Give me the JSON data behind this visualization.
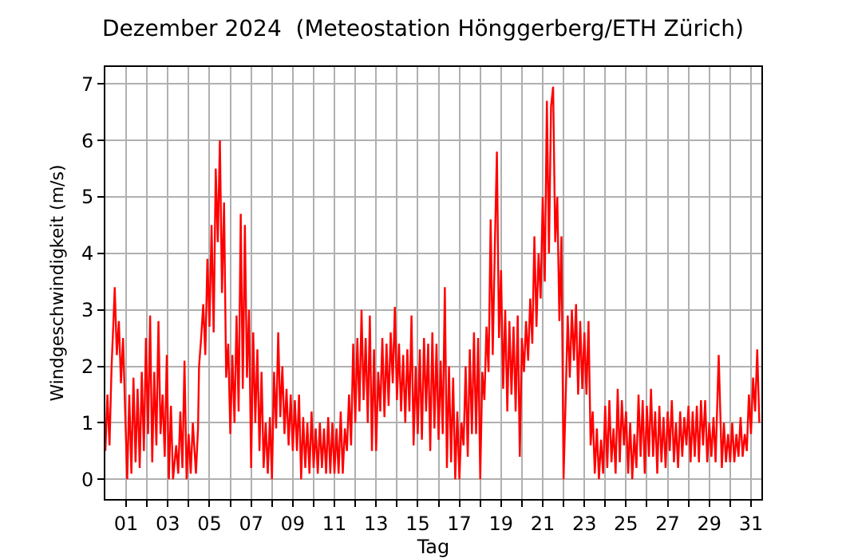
{
  "chart_data": {
    "type": "line",
    "title": "Dezember 2024  (Meteostation Hönggerberg/ETH Zürich)",
    "xlabel": "Tag",
    "ylabel": "Windgeschwindigkeit (m/s)",
    "xlim": [
      0,
      31.5
    ],
    "ylim": [
      -0.35,
      7.3
    ],
    "yticks": [
      0,
      1,
      2,
      3,
      4,
      5,
      6,
      7
    ],
    "xticks": [
      {
        "value": 1,
        "label": "01"
      },
      {
        "value": 2,
        "label": null
      },
      {
        "value": 3,
        "label": "03"
      },
      {
        "value": 4,
        "label": null
      },
      {
        "value": 5,
        "label": "05"
      },
      {
        "value": 6,
        "label": null
      },
      {
        "value": 7,
        "label": "07"
      },
      {
        "value": 8,
        "label": null
      },
      {
        "value": 9,
        "label": "09"
      },
      {
        "value": 10,
        "label": null
      },
      {
        "value": 11,
        "label": "11"
      },
      {
        "value": 12,
        "label": null
      },
      {
        "value": 13,
        "label": "13"
      },
      {
        "value": 14,
        "label": null
      },
      {
        "value": 15,
        "label": "15"
      },
      {
        "value": 16,
        "label": null
      },
      {
        "value": 17,
        "label": "17"
      },
      {
        "value": 18,
        "label": null
      },
      {
        "value": 19,
        "label": "19"
      },
      {
        "value": 20,
        "label": null
      },
      {
        "value": 21,
        "label": "21"
      },
      {
        "value": 22,
        "label": null
      },
      {
        "value": 23,
        "label": "23"
      },
      {
        "value": 24,
        "label": null
      },
      {
        "value": 25,
        "label": "25"
      },
      {
        "value": 26,
        "label": null
      },
      {
        "value": 27,
        "label": "27"
      },
      {
        "value": 28,
        "label": null
      },
      {
        "value": 29,
        "label": "29"
      },
      {
        "value": 30,
        "label": null
      },
      {
        "value": 31,
        "label": "31"
      }
    ],
    "grid": true,
    "marker": "none",
    "line_style": "solid",
    "series": [
      {
        "color": "#ff0000",
        "x": [
          0,
          0.1,
          0.2,
          0.3,
          0.4,
          0.45,
          0.55,
          0.65,
          0.75,
          0.85,
          0.95,
          1.05,
          1.15,
          1.25,
          1.35,
          1.45,
          1.55,
          1.65,
          1.75,
          1.85,
          1.95,
          2.05,
          2.15,
          2.25,
          2.35,
          2.45,
          2.55,
          2.65,
          2.75,
          2.85,
          2.95,
          3.05,
          3.15,
          3.25,
          3.4,
          3.5,
          3.6,
          3.7,
          3.8,
          3.9,
          4.0,
          4.1,
          4.2,
          4.35,
          4.45,
          4.5,
          4.6,
          4.7,
          4.8,
          4.9,
          5.0,
          5.1,
          5.2,
          5.3,
          5.4,
          5.5,
          5.6,
          5.7,
          5.8,
          5.9,
          6.0,
          6.1,
          6.2,
          6.3,
          6.4,
          6.5,
          6.6,
          6.7,
          6.8,
          6.9,
          7.0,
          7.1,
          7.2,
          7.3,
          7.4,
          7.5,
          7.6,
          7.7,
          7.8,
          7.9,
          8.0,
          8.1,
          8.2,
          8.3,
          8.4,
          8.5,
          8.6,
          8.7,
          8.8,
          8.9,
          9.0,
          9.1,
          9.2,
          9.3,
          9.4,
          9.5,
          9.6,
          9.7,
          9.8,
          9.9,
          10.0,
          10.1,
          10.2,
          10.3,
          10.4,
          10.5,
          10.6,
          10.7,
          10.8,
          10.9,
          11.0,
          11.1,
          11.2,
          11.3,
          11.4,
          11.5,
          11.6,
          11.7,
          11.8,
          11.9,
          12.0,
          12.1,
          12.2,
          12.3,
          12.4,
          12.5,
          12.6,
          12.7,
          12.8,
          12.9,
          13.0,
          13.1,
          13.2,
          13.3,
          13.4,
          13.5,
          13.6,
          13.7,
          13.8,
          13.9,
          14.0,
          14.1,
          14.2,
          14.3,
          14.4,
          14.5,
          14.6,
          14.7,
          14.8,
          14.9,
          15.0,
          15.1,
          15.2,
          15.3,
          15.4,
          15.5,
          15.6,
          15.7,
          15.8,
          15.9,
          16.0,
          16.1,
          16.2,
          16.3,
          16.4,
          16.5,
          16.6,
          16.7,
          16.8,
          16.9,
          17.0,
          17.1,
          17.2,
          17.3,
          17.4,
          17.5,
          17.6,
          17.7,
          17.8,
          17.9,
          18.0,
          18.1,
          18.2,
          18.3,
          18.4,
          18.5,
          18.6,
          18.7,
          18.8,
          18.9,
          19.0,
          19.1,
          19.2,
          19.3,
          19.4,
          19.5,
          19.6,
          19.7,
          19.8,
          19.9,
          20.0,
          20.1,
          20.2,
          20.3,
          20.4,
          20.5,
          20.6,
          20.7,
          20.8,
          20.9,
          21.0,
          21.1,
          21.2,
          21.3,
          21.4,
          21.5,
          21.6,
          21.7,
          21.8,
          21.9,
          22.0,
          22.1,
          22.2,
          22.3,
          22.4,
          22.5,
          22.6,
          22.7,
          22.8,
          22.9,
          23.0,
          23.1,
          23.2,
          23.3,
          23.4,
          23.5,
          23.6,
          23.7,
          23.8,
          23.9,
          24.0,
          24.1,
          24.2,
          24.3,
          24.4,
          24.5,
          24.6,
          24.7,
          24.8,
          24.9,
          25.0,
          25.1,
          25.2,
          25.3,
          25.4,
          25.5,
          25.6,
          25.7,
          25.8,
          25.9,
          26.0,
          26.1,
          26.2,
          26.3,
          26.4,
          26.5,
          26.6,
          26.7,
          26.8,
          26.9,
          27.0,
          27.1,
          27.2,
          27.3,
          27.4,
          27.5,
          27.6,
          27.7,
          27.8,
          27.9,
          28.0,
          28.1,
          28.2,
          28.3,
          28.4,
          28.5,
          28.6,
          28.7,
          28.8,
          28.9,
          29.0,
          29.1,
          29.2,
          29.3,
          29.45,
          29.6,
          29.7,
          29.8,
          29.9,
          30.0,
          30.1,
          30.2,
          30.3,
          30.4,
          30.5,
          30.6,
          30.7,
          30.8,
          30.9,
          31.0,
          31.1,
          31.2,
          31.3,
          31.4
        ],
        "values": [
          0.5,
          1.5,
          0.6,
          2.0,
          2.9,
          3.4,
          2.2,
          2.8,
          1.7,
          2.5,
          1.2,
          0.0,
          1.5,
          0.1,
          1.8,
          0.3,
          1.6,
          0.2,
          1.9,
          0.5,
          2.5,
          0.8,
          2.9,
          0.3,
          1.9,
          0.6,
          2.8,
          0.8,
          1.5,
          0.4,
          2.2,
          0.0,
          1.3,
          0.0,
          0.6,
          0.1,
          1.2,
          0.2,
          2.1,
          0.0,
          0.8,
          0.1,
          1.0,
          0.1,
          0.9,
          2.0,
          2.5,
          3.1,
          2.2,
          3.9,
          2.7,
          4.5,
          2.6,
          5.5,
          4.2,
          6.0,
          3.3,
          4.9,
          1.8,
          2.4,
          0.8,
          2.2,
          1.0,
          2.9,
          1.2,
          4.7,
          1.6,
          4.5,
          1.8,
          3.0,
          0.2,
          2.6,
          1.0,
          2.3,
          0.5,
          1.9,
          0.2,
          1.0,
          0.1,
          1.1,
          0.0,
          1.9,
          0.9,
          2.6,
          1.1,
          2.0,
          0.8,
          1.6,
          0.6,
          1.5,
          0.5,
          1.4,
          0.5,
          1.5,
          0.0,
          1.1,
          0.2,
          1.0,
          0.1,
          1.2,
          0.2,
          0.9,
          0.1,
          1.0,
          0.2,
          0.9,
          0.1,
          1.1,
          0.1,
          1.0,
          0.1,
          0.9,
          0.1,
          1.2,
          0.1,
          0.9,
          0.5,
          1.5,
          0.6,
          2.4,
          1.0,
          2.5,
          1.2,
          3.0,
          1.4,
          2.5,
          1.0,
          2.9,
          0.5,
          2.3,
          0.5,
          1.9,
          1.2,
          2.5,
          1.1,
          2.4,
          1.3,
          2.6,
          1.7,
          3.05,
          1.4,
          2.4,
          1.2,
          2.2,
          1.0,
          2.3,
          1.2,
          2.9,
          0.6,
          2.0,
          0.8,
          2.3,
          0.7,
          2.5,
          1.2,
          2.4,
          0.5,
          2.6,
          0.9,
          2.4,
          0.7,
          2.1,
          0.8,
          3.4,
          0.2,
          2.0,
          0.3,
          1.8,
          0.0,
          1.2,
          0.0,
          1.0,
          0.6,
          2.0,
          0.4,
          2.3,
          0.8,
          2.6,
          0.8,
          2.5,
          0.0,
          1.9,
          1.4,
          2.7,
          1.9,
          4.6,
          2.2,
          4.1,
          5.8,
          2.5,
          3.7,
          1.6,
          3.0,
          1.2,
          2.8,
          1.5,
          2.7,
          1.2,
          2.9,
          0.4,
          2.5,
          1.9,
          2.8,
          2.1,
          3.2,
          2.4,
          4.3,
          2.7,
          4.0,
          3.2,
          5.0,
          3.5,
          6.7,
          4.0,
          6.6,
          6.95,
          4.2,
          5.0,
          2.8,
          4.3,
          0.0,
          1.4,
          2.9,
          1.8,
          3.0,
          2.1,
          3.1,
          1.5,
          2.8,
          1.6,
          2.6,
          1.5,
          2.8,
          0.6,
          1.2,
          0.1,
          0.9,
          0.0,
          0.7,
          0.1,
          1.3,
          0.2,
          1.4,
          0.3,
          0.9,
          0.1,
          1.6,
          0.3,
          1.4,
          0.6,
          1.2,
          0.1,
          1.0,
          0.0,
          0.8,
          0.2,
          1.5,
          0.4,
          1.4,
          0.1,
          1.3,
          0.4,
          1.6,
          0.4,
          1.2,
          0.1,
          1.3,
          0.3,
          1.1,
          0.2,
          1.2,
          0.5,
          1.4,
          0.3,
          1.0,
          0.2,
          1.2,
          0.4,
          1.1,
          0.6,
          1.3,
          0.3,
          1.2,
          0.4,
          1.3,
          0.3,
          1.4,
          0.6,
          1.4,
          0.3,
          1.0,
          0.4,
          1.1,
          0.3,
          2.2,
          0.2,
          1.0,
          0.3,
          0.8,
          0.3,
          1.0,
          0.3,
          0.8,
          0.4,
          1.1,
          0.4,
          0.8,
          0.5,
          1.5,
          0.8,
          1.8,
          1.2,
          2.3,
          1.0
        ]
      }
    ]
  }
}
